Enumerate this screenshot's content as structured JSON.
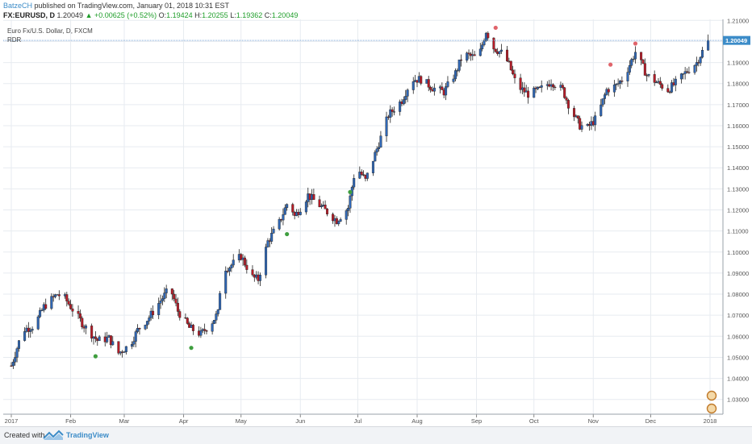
{
  "header": {
    "author": "BatzeCH",
    "published_text": "published on TradingView.com, January 01, 2018 10:31 EST",
    "symbol": "FX:EURUSD, D",
    "last": "1.20049",
    "change": "▲ +0.00625 (+0.52%)",
    "o_label": "O:",
    "o_value": "1.19424",
    "h_label": "H:",
    "h_value": "1.20255",
    "l_label": "L:",
    "l_value": "1.19362",
    "c_label": "C:",
    "c_value": "1.20049"
  },
  "legend": {
    "instrument": "Euro Fx/U.S. Dollar, D, FXCM",
    "indicator": "RDR"
  },
  "footer": {
    "created_with": "Created with",
    "brand": "TradingView"
  },
  "colors": {
    "up": "#2f67b5",
    "down": "#b71c28",
    "grid": "#e7ebf0",
    "price_line": "#7fa9d6",
    "price_tag": "#3c8cc8",
    "dot_green": "#3f9e3f",
    "dot_red": "#e0646b"
  },
  "chart_data": {
    "type": "candlestick",
    "ylim": [
      1.023,
      1.2105
    ],
    "last_price": 1.20049,
    "last_price_label": "1.20049",
    "y_ticks": [
      "1.21000",
      "1.20000",
      "1.19000",
      "1.18000",
      "1.17000",
      "1.16000",
      "1.15000",
      "1.14000",
      "1.13000",
      "1.12000",
      "1.11000",
      "1.10000",
      "1.09000",
      "1.08000",
      "1.07000",
      "1.06000",
      "1.05000",
      "1.04000",
      "1.03000"
    ],
    "x_ticks": [
      "2017",
      "Feb",
      "Mar",
      "Apr",
      "May",
      "Jun",
      "Jul",
      "Aug",
      "Sep",
      "Oct",
      "Nov",
      "Dec",
      "2018"
    ],
    "x_tick_days": [
      0,
      31,
      59,
      90,
      120,
      151,
      181,
      212,
      243,
      273,
      304,
      334,
      365
    ],
    "price_path": [
      [
        0,
        1.046
      ],
      [
        6,
        1.063
      ],
      [
        12,
        1.065
      ],
      [
        17,
        1.074
      ],
      [
        24,
        1.08
      ],
      [
        28,
        1.078
      ],
      [
        38,
        1.065
      ],
      [
        45,
        1.058
      ],
      [
        51,
        1.059
      ],
      [
        56,
        1.052
      ],
      [
        62,
        1.056
      ],
      [
        66,
        1.063
      ],
      [
        72,
        1.069
      ],
      [
        78,
        1.077
      ],
      [
        83,
        1.083
      ],
      [
        87,
        1.072
      ],
      [
        93,
        1.064
      ],
      [
        99,
        1.061
      ],
      [
        105,
        1.067
      ],
      [
        108,
        1.071
      ],
      [
        110,
        1.092
      ],
      [
        114,
        1.093
      ],
      [
        120,
        1.098
      ],
      [
        126,
        1.088
      ],
      [
        129,
        1.087
      ],
      [
        134,
        1.105
      ],
      [
        140,
        1.114
      ],
      [
        145,
        1.125
      ],
      [
        148,
        1.117
      ],
      [
        151,
        1.121
      ],
      [
        155,
        1.127
      ],
      [
        160,
        1.123
      ],
      [
        165,
        1.119
      ],
      [
        170,
        1.115
      ],
      [
        176,
        1.121
      ],
      [
        180,
        1.141
      ],
      [
        185,
        1.134
      ],
      [
        191,
        1.149
      ],
      [
        197,
        1.165
      ],
      [
        204,
        1.172
      ],
      [
        209,
        1.182
      ],
      [
        214,
        1.182
      ],
      [
        220,
        1.178
      ],
      [
        226,
        1.176
      ],
      [
        232,
        1.185
      ],
      [
        236,
        1.194
      ],
      [
        240,
        1.193
      ],
      [
        244,
        1.192
      ],
      [
        248,
        1.205
      ],
      [
        252,
        1.197
      ],
      [
        257,
        1.194
      ],
      [
        260,
        1.189
      ],
      [
        264,
        1.179
      ],
      [
        270,
        1.175
      ],
      [
        276,
        1.177
      ],
      [
        282,
        1.181
      ],
      [
        288,
        1.177
      ],
      [
        292,
        1.168
      ],
      [
        297,
        1.16
      ],
      [
        301,
        1.159
      ],
      [
        306,
        1.164
      ],
      [
        311,
        1.177
      ],
      [
        316,
        1.179
      ],
      [
        320,
        1.183
      ],
      [
        326,
        1.195
      ],
      [
        332,
        1.184
      ],
      [
        338,
        1.18
      ],
      [
        343,
        1.177
      ],
      [
        348,
        1.181
      ],
      [
        353,
        1.186
      ],
      [
        358,
        1.19
      ],
      [
        364,
        1.2005
      ]
    ],
    "signals": [
      {
        "day": 44,
        "price": 1.0505,
        "kind": "bull"
      },
      {
        "day": 94,
        "price": 1.0545,
        "kind": "bull"
      },
      {
        "day": 144,
        "price": 1.1085,
        "kind": "bull"
      },
      {
        "day": 177,
        "price": 1.1285,
        "kind": "bull"
      },
      {
        "day": 253,
        "price": 1.2065,
        "kind": "bear"
      },
      {
        "day": 313,
        "price": 1.189,
        "kind": "bear"
      },
      {
        "day": 326,
        "price": 1.199,
        "kind": "bear"
      }
    ]
  }
}
